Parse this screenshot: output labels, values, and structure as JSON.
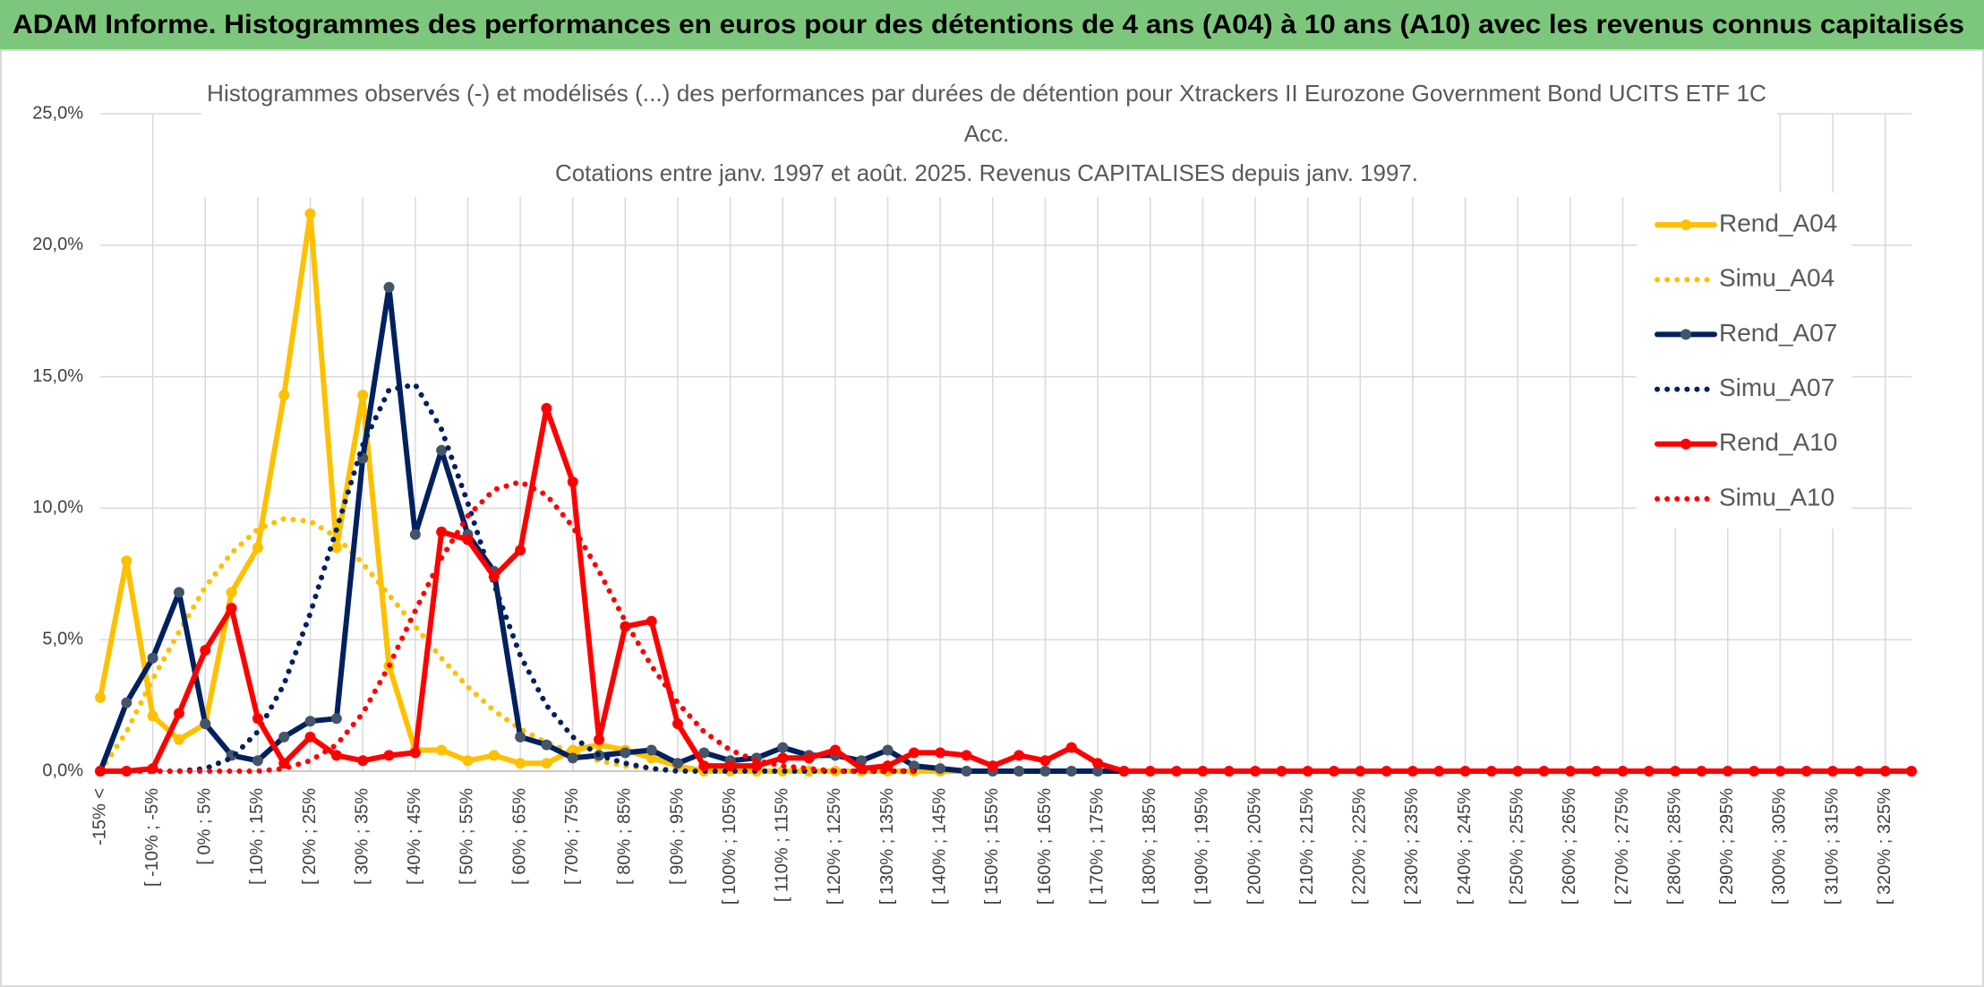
{
  "chart_data": {
    "type": "line",
    "banner": "ADAM Informe. Histogrammes des performances en euros pour des détentions de 4 ans (A04) à 10 ans (A10) avec les revenus connus capitalisés",
    "title_lines": [
      "Histogrammes observés (-) et modélisés (...) des performances par durées de détention pour Xtrackers II Eurozone Government Bond UCITS ETF 1C",
      "Acc.",
      "Cotations entre janv. 1997 et août. 2025. Revenus CAPITALISES depuis janv. 1997."
    ],
    "categories": [
      "-15% <",
      null,
      "[ -10% ; -5%",
      null,
      "[ 0% ; 5%",
      null,
      "[ 10% ; 15%",
      null,
      "[ 20% ; 25%",
      null,
      "[ 30% ; 35%",
      null,
      "[ 40% ; 45%",
      null,
      "[ 50% ; 55%",
      null,
      "[ 60% ; 65%",
      null,
      "[ 70% ; 75%",
      null,
      "[ 80% ; 85%",
      null,
      "[ 90% ; 95%",
      null,
      "[ 100% ; 105%",
      null,
      "[ 110% ; 115%",
      null,
      "[ 120% ; 125%",
      null,
      "[ 130% ; 135%",
      null,
      "[ 140% ; 145%",
      null,
      "[ 150% ; 155%",
      null,
      "[ 160% ; 165%",
      null,
      "[ 170% ; 175%",
      null,
      "[ 180% ; 185%",
      null,
      "[ 190% ; 195%",
      null,
      "[ 200% ; 205%",
      null,
      "[ 210% ; 215%",
      null,
      "[ 220% ; 225%",
      null,
      "[ 230% ; 235%",
      null,
      "[ 240% ; 245%",
      null,
      "[ 250% ; 255%",
      null,
      "[ 260% ; 265%",
      null,
      "[ 270% ; 275%",
      null,
      "[ 280% ; 285%",
      null,
      "[ 290% ; 295%",
      null,
      "[ 300% ; 305%",
      null,
      "[ 310% ; 315%",
      null,
      "[ 320% ; 325%",
      null
    ],
    "series": [
      {
        "name": "Rend_A04",
        "color": "#ffc000",
        "style": "solid",
        "markers": true,
        "values": [
          2.8,
          8.0,
          2.1,
          1.2,
          1.8,
          6.8,
          8.5,
          14.3,
          21.2,
          8.5,
          14.3,
          4.0,
          0.8,
          0.8,
          0.4,
          0.6,
          0.3,
          0.3,
          0.8,
          1.0,
          0.8,
          0.5,
          0.2,
          0,
          0,
          0,
          0,
          0,
          0,
          0,
          0,
          0,
          0,
          0,
          0,
          0,
          0,
          0,
          0,
          0,
          null,
          null,
          null,
          null,
          null,
          null,
          null,
          null,
          null,
          null,
          null,
          null,
          null,
          null,
          null,
          null,
          null,
          null,
          null,
          null,
          null,
          null,
          null,
          null,
          null,
          null,
          null,
          null,
          null,
          null
        ]
      },
      {
        "name": "Simu_A04",
        "color": "#ffc000",
        "style": "dotted",
        "markers": false,
        "values": [
          0,
          1.5,
          3.5,
          5.3,
          7.0,
          8.3,
          9.2,
          9.6,
          9.5,
          8.9,
          7.9,
          6.7,
          5.5,
          4.3,
          3.2,
          2.3,
          1.6,
          1.1,
          0.7,
          0.4,
          0.2,
          0.1,
          0.05,
          0,
          0,
          0,
          0,
          0,
          0,
          0,
          0,
          0,
          null,
          null,
          null,
          null,
          null,
          null,
          null,
          null,
          null,
          null,
          null,
          null,
          null,
          null,
          null,
          null,
          null,
          null,
          null,
          null,
          null,
          null,
          null,
          null,
          null,
          null,
          null,
          null,
          null,
          null,
          null,
          null,
          null,
          null,
          null,
          null,
          null,
          null
        ]
      },
      {
        "name": "Rend_A07",
        "color": "#002060",
        "marker_color": "#44546a",
        "style": "solid",
        "markers": true,
        "values": [
          0,
          2.6,
          4.3,
          6.8,
          1.8,
          0.6,
          0.4,
          1.3,
          1.9,
          2.0,
          11.9,
          18.4,
          9.0,
          12.2,
          9.0,
          7.6,
          1.3,
          1.0,
          0.5,
          0.6,
          0.7,
          0.8,
          0.3,
          0.7,
          0.4,
          0.5,
          0.9,
          0.6,
          0.6,
          0.4,
          0.8,
          0.2,
          0.1,
          0,
          0,
          0,
          0,
          0,
          0,
          0,
          null,
          null,
          null,
          null,
          null,
          null,
          null,
          null,
          null,
          null,
          null,
          null,
          null,
          null,
          null,
          null,
          null,
          null,
          null,
          null,
          null,
          null,
          null,
          null,
          null,
          null,
          null,
          null,
          null,
          null
        ]
      },
      {
        "name": "Simu_A07",
        "color": "#002060",
        "style": "dotted",
        "markers": false,
        "values": [
          0,
          0,
          0,
          0,
          0.1,
          0.5,
          1.5,
          3.3,
          6.0,
          9.2,
          12.4,
          14.5,
          14.7,
          13.0,
          10.2,
          7.1,
          4.4,
          2.5,
          1.3,
          0.6,
          0.3,
          0.1,
          0,
          0,
          0,
          0,
          0,
          0,
          0,
          0,
          0,
          0,
          null,
          null,
          null,
          null,
          null,
          null,
          null,
          null,
          null,
          null,
          null,
          null,
          null,
          null,
          null,
          null,
          null,
          null,
          null,
          null,
          null,
          null,
          null,
          null,
          null,
          null,
          null,
          null,
          null,
          null,
          null,
          null,
          null,
          null,
          null,
          null,
          null,
          null
        ]
      },
      {
        "name": "Rend_A10",
        "color": "#ff0000",
        "style": "solid",
        "markers": true,
        "values": [
          0,
          0,
          0.1,
          2.2,
          4.6,
          6.2,
          2.0,
          0.3,
          1.3,
          0.6,
          0.4,
          0.6,
          0.7,
          9.1,
          8.8,
          7.4,
          8.4,
          13.8,
          11.0,
          1.2,
          5.5,
          5.7,
          1.8,
          0.2,
          0.2,
          0.2,
          0.5,
          0.5,
          0.8,
          0.1,
          0.2,
          0.7,
          0.7,
          0.6,
          0.2,
          0.6,
          0.4,
          0.9,
          0.3,
          0,
          0,
          0,
          0,
          0,
          0,
          0,
          0,
          0,
          0,
          0,
          0,
          0,
          0,
          0,
          0,
          0,
          0,
          0,
          0,
          0,
          0,
          0,
          0,
          0,
          0,
          0,
          0,
          0,
          0,
          0
        ]
      },
      {
        "name": "Simu_A10",
        "color": "#ff0000",
        "style": "dotted",
        "markers": false,
        "values": [
          0,
          0,
          0,
          0,
          0,
          0,
          0,
          0.1,
          0.4,
          1.0,
          2.2,
          4.0,
          6.1,
          8.1,
          9.7,
          10.7,
          11.0,
          10.5,
          9.3,
          7.6,
          5.7,
          4.0,
          2.6,
          1.5,
          0.8,
          0.4,
          0.2,
          0.1,
          0,
          0,
          0,
          0,
          null,
          null,
          null,
          null,
          null,
          null,
          null,
          null,
          null,
          null,
          null,
          null,
          null,
          null,
          null,
          null,
          null,
          null,
          null,
          null,
          null,
          null,
          null,
          null,
          null,
          null,
          null,
          null,
          null,
          null,
          null,
          null,
          null,
          null,
          null,
          null,
          null,
          null
        ]
      }
    ],
    "ylim": [
      0,
      25
    ],
    "yticks": [
      {
        "value": 0,
        "label": "0,0%"
      },
      {
        "value": 5,
        "label": "5,0%"
      },
      {
        "value": 10,
        "label": "10,0%"
      },
      {
        "value": 15,
        "label": "15,0%"
      },
      {
        "value": 20,
        "label": "20,0%"
      },
      {
        "value": 25,
        "label": "25,0%"
      }
    ],
    "grid": true,
    "legend": "right",
    "banner_color": "#7cc77c"
  }
}
